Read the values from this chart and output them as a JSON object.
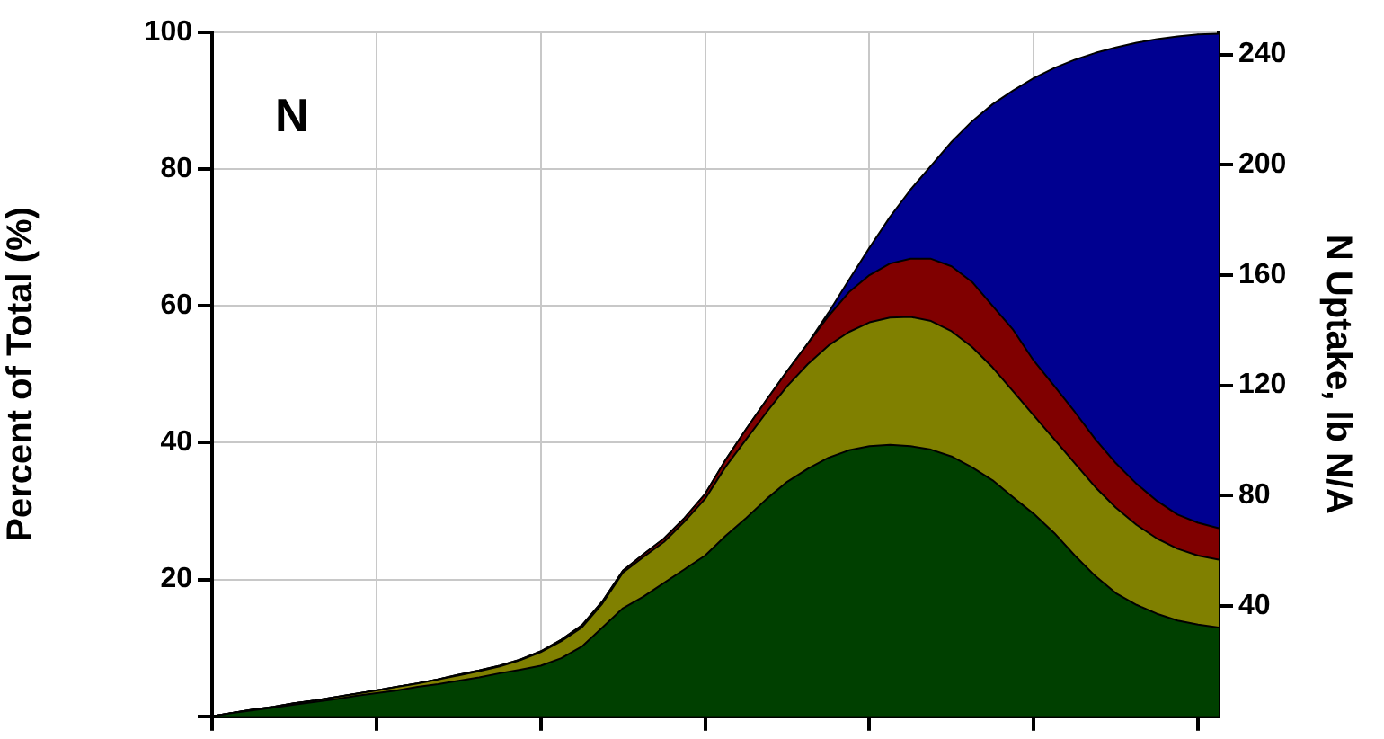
{
  "chart_data": {
    "type": "area",
    "stacked": true,
    "ylabel": "Percent of Total (%)",
    "y2label": "N Uptake, lb N/A",
    "annotations": [
      "N"
    ],
    "categories": [
      null,
      null,
      null,
      null,
      null,
      null,
      null,
      null,
      null,
      null,
      null,
      null,
      null,
      null,
      null,
      null,
      null,
      null,
      null,
      null,
      null,
      null,
      null,
      null,
      null,
      null,
      null,
      null,
      null,
      null,
      null,
      null,
      null,
      null,
      null,
      null,
      null,
      null,
      null,
      null,
      null,
      null,
      null,
      null,
      null,
      null,
      null,
      null,
      null,
      null
    ],
    "series": [
      {
        "color": "#004000",
        "values": [
          0,
          0.5,
          0.9,
          1.3,
          1.7,
          2.1,
          2.5,
          3,
          3.4,
          3.8,
          4.3,
          4.7,
          5.2,
          5.7,
          6.3,
          6.8,
          7.4,
          8.5,
          10.2,
          13,
          15.8,
          17.5,
          19.5,
          21.5,
          23.5,
          26.4,
          29,
          31.8,
          34.3,
          36.2,
          37.8,
          38.9,
          39.5,
          39.7,
          39.5,
          39,
          38,
          36.4,
          34.5,
          32,
          29.6,
          26.8,
          23.5,
          20.5,
          18,
          16.3,
          15,
          14,
          13.4,
          13
        ]
      },
      {
        "color": "#808000",
        "values": [
          0,
          0,
          0.1,
          0.1,
          0.2,
          0.2,
          0.3,
          0.3,
          0.4,
          0.5,
          0.5,
          0.7,
          0.8,
          0.9,
          1,
          1.4,
          2,
          2.5,
          2.8,
          3.5,
          5.2,
          5.8,
          6,
          7,
          8.3,
          10.1,
          11.5,
          12.7,
          14,
          15.3,
          16.4,
          17.3,
          18.1,
          18.6,
          18.9,
          18.8,
          18.3,
          17.6,
          16.5,
          15.5,
          14.4,
          13.7,
          13.5,
          13,
          12.5,
          11.7,
          11,
          10.5,
          10.1,
          9.9
        ]
      },
      {
        "color": "#800000",
        "values": [
          0,
          0,
          0,
          0,
          0,
          0,
          0,
          0,
          0,
          0,
          0,
          0,
          0.1,
          0.1,
          0.1,
          0.1,
          0.1,
          0.2,
          0.3,
          0.3,
          0.3,
          0.4,
          0.5,
          0.5,
          0.7,
          1,
          1.5,
          1.8,
          2.2,
          3,
          4.3,
          5.8,
          6.9,
          7.9,
          8.5,
          9.1,
          9.5,
          9.5,
          9,
          9,
          8,
          7.8,
          7.5,
          7,
          6.5,
          6,
          5.5,
          5,
          4.8,
          4.6
        ]
      },
      {
        "color": "#000090",
        "values": [
          0,
          0,
          0,
          0,
          0,
          0,
          0,
          0,
          0,
          0,
          0,
          0,
          0,
          0,
          0,
          0,
          0,
          0,
          0,
          0,
          0,
          0,
          0,
          0,
          0,
          0,
          0,
          0,
          0,
          0,
          0.5,
          1.8,
          4,
          6.8,
          10.1,
          13.6,
          18.2,
          23.5,
          29.5,
          35,
          41.3,
          46.5,
          51.5,
          56.5,
          60.8,
          64.5,
          67.5,
          69.9,
          71.4,
          72.3
        ]
      }
    ],
    "ylim": [
      0,
      100
    ],
    "yticks": [
      {
        "value": 0,
        "label": null
      },
      20,
      40,
      60,
      80,
      100
    ],
    "y2lim": [
      0,
      248
    ],
    "y2ticks": [
      40,
      80,
      120,
      160,
      200,
      240
    ],
    "grid": true,
    "legend": false
  }
}
